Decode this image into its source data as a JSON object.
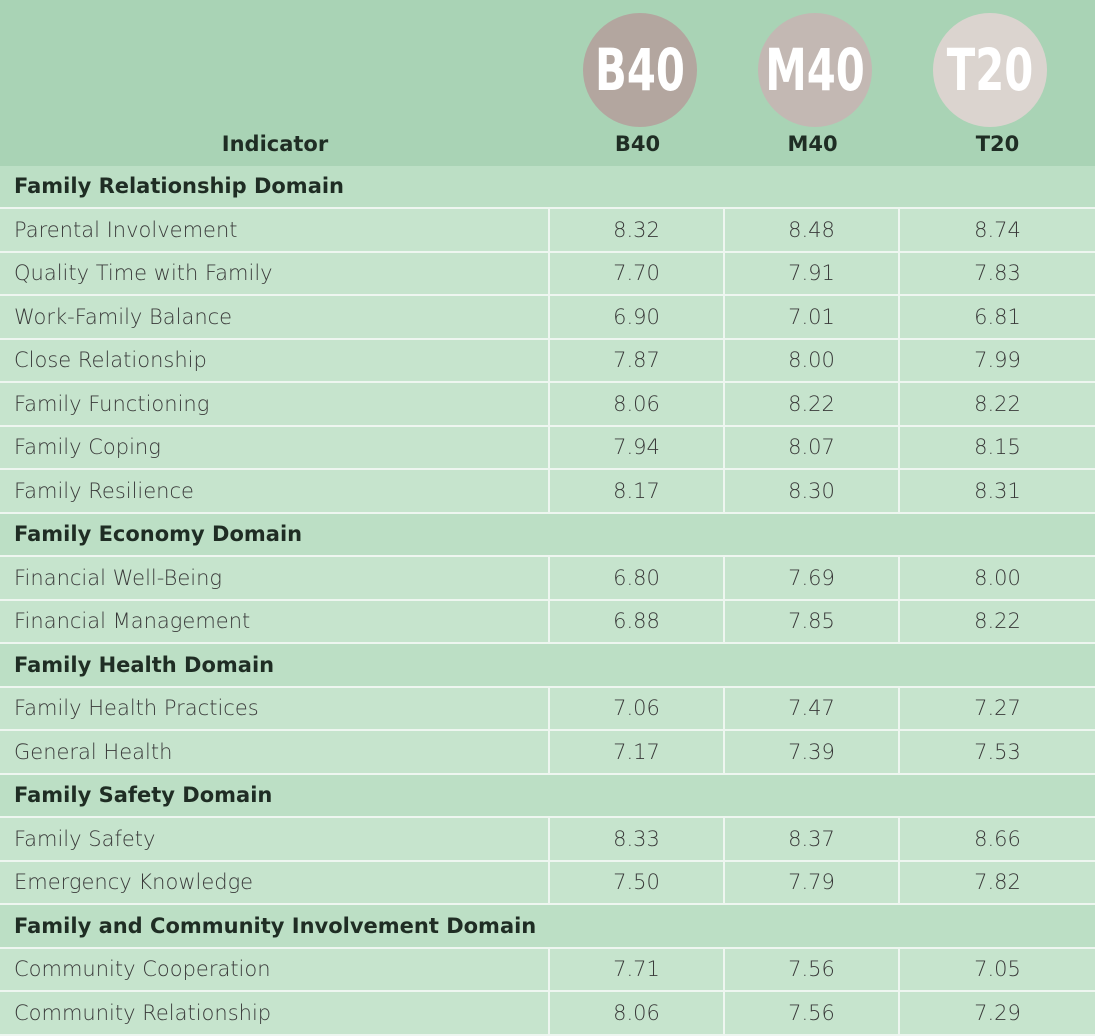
{
  "badges": [
    "B40",
    "M40",
    "T20"
  ],
  "table": {
    "columns": [
      "Indicator",
      "B40",
      "M40",
      "T20"
    ],
    "sections": [
      {
        "domain": "Family Relationship Domain",
        "rows": [
          {
            "indicator": "Parental Involvement",
            "values": [
              "8.32",
              "8.48",
              "8.74"
            ]
          },
          {
            "indicator": "Quality Time with Family",
            "values": [
              "7.70",
              "7.91",
              "7.83"
            ]
          },
          {
            "indicator": "Work-Family Balance",
            "values": [
              "6.90",
              "7.01",
              "6.81"
            ]
          },
          {
            "indicator": "Close Relationship",
            "values": [
              "7.87",
              "8.00",
              "7.99"
            ]
          },
          {
            "indicator": "Family Functioning",
            "values": [
              "8.06",
              "8.22",
              "8.22"
            ]
          },
          {
            "indicator": "Family Coping",
            "values": [
              "7.94",
              "8.07",
              "8.15"
            ]
          },
          {
            "indicator": "Family Resilience",
            "values": [
              "8.17",
              "8.30",
              "8.31"
            ]
          }
        ]
      },
      {
        "domain": "Family Economy Domain",
        "rows": [
          {
            "indicator": "Financial Well-Being",
            "values": [
              "6.80",
              "7.69",
              "8.00"
            ]
          },
          {
            "indicator": "Financial Management",
            "values": [
              "6.88",
              "7.85",
              "8.22"
            ]
          }
        ]
      },
      {
        "domain": "Family Health Domain",
        "rows": [
          {
            "indicator": "Family Health Practices",
            "values": [
              "7.06",
              "7.47",
              "7.27"
            ]
          },
          {
            "indicator": "General Health",
            "values": [
              "7.17",
              "7.39",
              "7.53"
            ]
          }
        ]
      },
      {
        "domain": "Family Safety Domain",
        "rows": [
          {
            "indicator": "Family Safety",
            "values": [
              "8.33",
              "8.37",
              "8.66"
            ]
          },
          {
            "indicator": "Emergency Knowledge",
            "values": [
              "7.50",
              "7.79",
              "7.82"
            ]
          }
        ]
      },
      {
        "domain": "Family and Community Involvement Domain",
        "rows": [
          {
            "indicator": "Community Cooperation",
            "values": [
              "7.71",
              "7.56",
              "7.05"
            ]
          },
          {
            "indicator": "Community Relationship",
            "values": [
              "8.06",
              "7.56",
              "7.29"
            ]
          }
        ]
      }
    ]
  }
}
